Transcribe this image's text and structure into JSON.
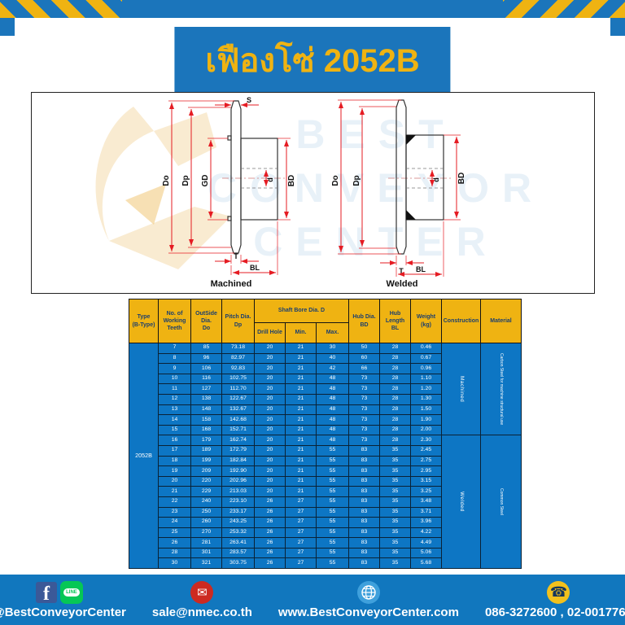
{
  "colors": {
    "blue": "#1b75bb",
    "table_blue": "#0d76c4",
    "yellow": "#efb312",
    "footer_blue": "#1177be",
    "dim_red": "#e51c23"
  },
  "title": {
    "text": "เฟืองโซ่ 2052B"
  },
  "diagram": {
    "captions": {
      "left": "Machined",
      "right": "Welded"
    },
    "labels": {
      "s": "S",
      "do": "Do",
      "dp": "Dp",
      "gd": "GD",
      "d": "d",
      "bd": "BD",
      "t": "T",
      "bl": "BL"
    },
    "watermark": {
      "line1": "BEST",
      "line2": "CONVEYOR",
      "line3": "CENTER"
    }
  },
  "table": {
    "headers": {
      "type": "Type\n(B-Type)",
      "teeth": "No. of\nWorking\nTeeth",
      "outside": "OutSide\nDia.\nDo",
      "pitch": "Pitch Dia.\nDp",
      "shaft_bore": "Shaft Bore Dia. D",
      "drill": "Drill Hole",
      "min": "Min.",
      "max": "Max.",
      "hub_dia": "Hub Dia.\nBD",
      "hub_len": "Hub\nLength\nBL",
      "weight": "Weight\n(kg)",
      "construction": "Construction",
      "material": "Material"
    },
    "type_label": "2052B",
    "rows": [
      [
        "7",
        "85",
        "73.18",
        "20",
        "21",
        "30",
        "50",
        "28",
        "0.46"
      ],
      [
        "8",
        "96",
        "82.97",
        "20",
        "21",
        "40",
        "60",
        "28",
        "0.67"
      ],
      [
        "9",
        "106",
        "92.83",
        "20",
        "21",
        "42",
        "66",
        "28",
        "0.96"
      ],
      [
        "10",
        "116",
        "102.75",
        "20",
        "21",
        "48",
        "73",
        "28",
        "1.10"
      ],
      [
        "11",
        "127",
        "112.70",
        "20",
        "21",
        "48",
        "73",
        "28",
        "1.20"
      ],
      [
        "12",
        "138",
        "122.67",
        "20",
        "21",
        "48",
        "73",
        "28",
        "1.30"
      ],
      [
        "13",
        "148",
        "132.67",
        "20",
        "21",
        "48",
        "73",
        "28",
        "1.50"
      ],
      [
        "14",
        "158",
        "142.68",
        "20",
        "21",
        "48",
        "73",
        "28",
        "1.90"
      ],
      [
        "15",
        "168",
        "152.71",
        "20",
        "21",
        "48",
        "73",
        "28",
        "2.00"
      ],
      [
        "16",
        "179",
        "162.74",
        "20",
        "21",
        "48",
        "73",
        "28",
        "2.30"
      ],
      [
        "17",
        "189",
        "172.79",
        "20",
        "21",
        "55",
        "83",
        "35",
        "2.45"
      ],
      [
        "18",
        "199",
        "182.84",
        "20",
        "21",
        "55",
        "83",
        "35",
        "2.75"
      ],
      [
        "19",
        "209",
        "192.90",
        "20",
        "21",
        "55",
        "83",
        "35",
        "2.95"
      ],
      [
        "20",
        "220",
        "202.96",
        "20",
        "21",
        "55",
        "83",
        "35",
        "3.15"
      ],
      [
        "21",
        "229",
        "213.03",
        "20",
        "21",
        "55",
        "83",
        "35",
        "3.25"
      ],
      [
        "22",
        "240",
        "223.10",
        "26",
        "27",
        "55",
        "83",
        "35",
        "3.48"
      ],
      [
        "23",
        "250",
        "233.17",
        "26",
        "27",
        "55",
        "83",
        "35",
        "3.71"
      ],
      [
        "24",
        "260",
        "243.25",
        "26",
        "27",
        "55",
        "83",
        "35",
        "3.96"
      ],
      [
        "25",
        "270",
        "253.32",
        "26",
        "27",
        "55",
        "83",
        "35",
        "4.22"
      ],
      [
        "26",
        "281",
        "263.41",
        "26",
        "27",
        "55",
        "83",
        "35",
        "4.49"
      ],
      [
        "28",
        "301",
        "283.57",
        "26",
        "27",
        "55",
        "83",
        "35",
        "5.06"
      ],
      [
        "30",
        "321",
        "303.75",
        "26",
        "27",
        "55",
        "83",
        "35",
        "5.68"
      ]
    ],
    "construction_groups": [
      {
        "label": "Machined",
        "rows": 9
      },
      {
        "label": "Welded",
        "rows": 13
      }
    ],
    "material_groups": [
      {
        "label": "Carbon Steel for machine structural use",
        "rows": 9
      },
      {
        "label": "Common Steel",
        "rows": 13
      }
    ]
  },
  "footer": {
    "social_label": "@BestConveyorCenter",
    "email": "sale@nmec.co.th",
    "website": "www.BestConveyorCenter.com",
    "phone": "086-3272600 , 02-0017766",
    "line_text": "LINE",
    "fb_letter": "f"
  }
}
